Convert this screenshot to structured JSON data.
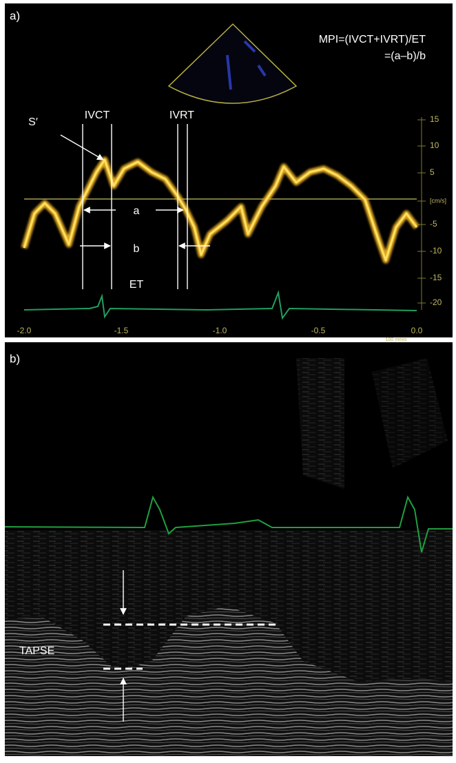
{
  "panel_a": {
    "label": "a)",
    "formula_line1": "MPI=(IVCT+IVRT)/ET",
    "formula_line2": "=(a–b)/b",
    "annotations": {
      "s_prime": "S′",
      "ivct": "IVCT",
      "ivrt": "IVRT",
      "a": "a",
      "b": "b",
      "et": "ET"
    },
    "velocity_scale": [
      "15",
      "10",
      "5",
      "[cm/s]",
      "-5",
      "-10",
      "-15",
      "-20"
    ],
    "time_scale": [
      "-2.0",
      "-1.5",
      "-1.0",
      "-0.5",
      "0.0"
    ],
    "speed": "100 mm/s"
  },
  "panel_b": {
    "label": "b)",
    "annotation": "TAPSE"
  }
}
